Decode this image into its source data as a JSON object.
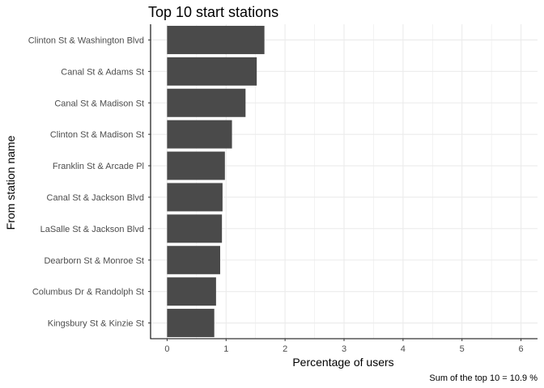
{
  "chart_data": {
    "type": "bar",
    "orientation": "horizontal",
    "title": "Top 10 start stations",
    "xlabel": "Percentage of users",
    "ylabel": "From station name",
    "caption": "Sum of the top 10 = 10.9 %",
    "categories": [
      "Clinton St & Washington Blvd",
      "Canal St & Adams St",
      "Canal St & Madison St",
      "Clinton St & Madison St",
      "Franklin St & Arcade Pl",
      "Canal St & Jackson Blvd",
      "LaSalle St & Jackson Blvd",
      "Dearborn St & Monroe St",
      "Columbus Dr & Randolph St",
      "Kingsbury St & Kinzie St"
    ],
    "values": [
      1.65,
      1.52,
      1.33,
      1.1,
      0.98,
      0.94,
      0.93,
      0.9,
      0.83,
      0.8
    ],
    "xlim": [
      -0.28,
      6.28
    ],
    "xticks": [
      0,
      1,
      2,
      3,
      4,
      5,
      6
    ],
    "grid": true,
    "bar_color": "#4a4a4a",
    "grid_color": "#ebebeb"
  }
}
